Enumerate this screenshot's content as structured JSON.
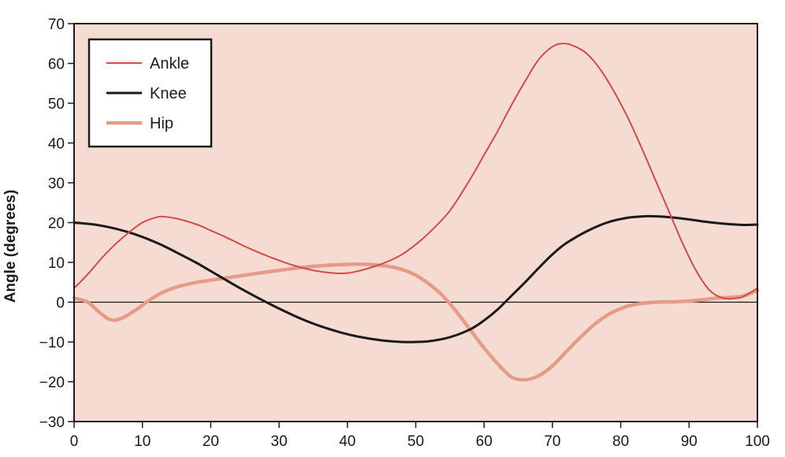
{
  "chart_data": {
    "type": "line",
    "title": "",
    "xlabel": "",
    "ylabel": "Angle (degrees)",
    "xlim": [
      0,
      100
    ],
    "ylim": [
      -30,
      70
    ],
    "xticks": [
      0,
      10,
      20,
      30,
      40,
      50,
      60,
      70,
      80,
      90,
      100
    ],
    "yticks": [
      70,
      60,
      50,
      40,
      30,
      20,
      10,
      0,
      -10,
      -20,
      -30
    ],
    "ytick_labels": [
      "70",
      "60",
      "50",
      "40",
      "30",
      "20",
      "10",
      "0",
      "−10",
      "−20",
      "−30"
    ],
    "grid": false,
    "zero_line": true,
    "legend_position": "top-left",
    "colors": {
      "plot_background": "#f5dcd2",
      "ankle": "#d44a48",
      "knee": "#1a1a1a",
      "hip": "#e69a88"
    },
    "series": [
      {
        "name": "Ankle",
        "color": "#d44a48",
        "x": [
          0,
          2,
          4,
          6,
          8,
          10,
          12,
          13,
          15,
          18,
          20,
          22,
          25,
          28,
          30,
          32,
          35,
          38,
          40,
          42,
          44,
          46,
          48,
          50,
          52,
          55,
          58,
          60,
          62,
          64,
          66,
          68,
          70,
          71.5,
          73,
          75,
          77,
          79,
          81,
          83,
          85,
          87,
          89,
          91,
          93,
          95,
          97,
          98,
          100
        ],
        "y": [
          3.5,
          7,
          11,
          14.5,
          17.5,
          20,
          21.3,
          21.5,
          21,
          19.5,
          18,
          16.5,
          14,
          11.8,
          10.5,
          9.3,
          8,
          7.3,
          7.3,
          8,
          9,
          10.3,
          12,
          14.5,
          17.5,
          23,
          31,
          37,
          43,
          49.5,
          55.5,
          61,
          64.2,
          65,
          64.5,
          62.5,
          58.5,
          53,
          46.5,
          39,
          31,
          23,
          15,
          8,
          3,
          1,
          1,
          1.5,
          3.5
        ]
      },
      {
        "name": "Knee",
        "color": "#1a1a1a",
        "x": [
          0,
          3,
          6,
          9,
          12,
          15,
          18,
          21,
          24,
          27,
          30,
          33,
          36,
          39,
          42,
          45,
          48,
          50,
          52,
          55,
          58,
          60,
          62,
          64,
          66,
          68,
          70,
          72,
          75,
          78,
          81,
          84,
          86,
          88,
          90,
          92,
          94,
          96,
          98,
          100
        ],
        "y": [
          20,
          19.5,
          18.5,
          17,
          15,
          12.5,
          9.8,
          6.8,
          3.8,
          1,
          -1.6,
          -4,
          -6,
          -7.6,
          -8.8,
          -9.6,
          -10,
          -10,
          -9.8,
          -8.8,
          -6.8,
          -4.6,
          -1.8,
          1.6,
          5,
          8.6,
          12,
          14.8,
          17.8,
          20,
          21.2,
          21.6,
          21.5,
          21.2,
          20.8,
          20.3,
          19.9,
          19.6,
          19.4,
          19.5
        ]
      },
      {
        "name": "Hip",
        "color": "#e69a88",
        "x": [
          0,
          2,
          4,
          5.5,
          7,
          9,
          11,
          13,
          15,
          18,
          20,
          25,
          30,
          35,
          40,
          43,
          46,
          48,
          50,
          52,
          54,
          56,
          58,
          60,
          62,
          64,
          66,
          68,
          70,
          72,
          74,
          76,
          78,
          80,
          82,
          85,
          88,
          90,
          92,
          94,
          96,
          98,
          100
        ],
        "y": [
          1,
          0,
          -3,
          -4.5,
          -4,
          -2,
          0.5,
          2.5,
          3.8,
          5,
          5.5,
          6.8,
          8,
          9,
          9.5,
          9.5,
          9,
          8.2,
          6.8,
          4.5,
          1.5,
          -2.5,
          -7,
          -11.5,
          -15.5,
          -18.8,
          -19.5,
          -18.5,
          -16,
          -12.5,
          -9,
          -5.8,
          -3.3,
          -1.6,
          -0.6,
          0,
          0.1,
          0.3,
          0.6,
          1,
          1.2,
          1.6,
          3
        ]
      }
    ]
  }
}
